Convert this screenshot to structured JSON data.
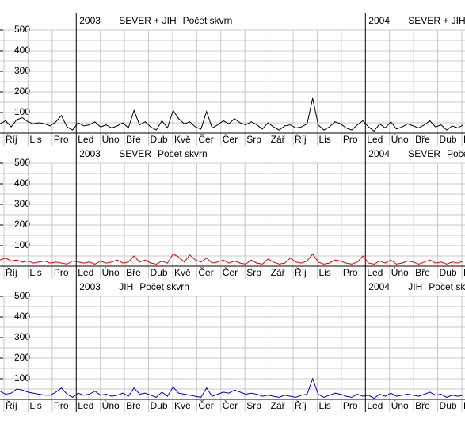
{
  "chart_data": [
    {
      "type": "line",
      "year_labels": [
        "2003",
        "2004"
      ],
      "subtitle": "SEVER + JIH",
      "title": "Počet skvrn",
      "months": [
        "Říj",
        "Lis",
        "Pro",
        "Led",
        "Úno",
        "Bře",
        "Dub",
        "Kvě",
        "Čer",
        "Čer",
        "Srp",
        "Zář",
        "Říj",
        "Lis",
        "Pro",
        "Led",
        "Úno",
        "Bře",
        "Dub",
        "Kvě"
      ],
      "ylim": [
        0,
        500
      ],
      "yticks": [
        100,
        200,
        300,
        400,
        500
      ],
      "minor_yticks": [
        50,
        150,
        250,
        350,
        450
      ],
      "grid": true,
      "series": [
        {
          "color": "#000000",
          "values": [
            45,
            60,
            30,
            65,
            75,
            55,
            45,
            50,
            45,
            35,
            55,
            85,
            30,
            15,
            50,
            35,
            40,
            55,
            30,
            40,
            25,
            35,
            50,
            25,
            110,
            40,
            55,
            30,
            15,
            60,
            25,
            110,
            70,
            45,
            55,
            30,
            20,
            105,
            25,
            40,
            60,
            45,
            70,
            50,
            40,
            55,
            40,
            20,
            50,
            30,
            15,
            35,
            40,
            25,
            30,
            45,
            170,
            40,
            15,
            30,
            55,
            45,
            25,
            15,
            40,
            60,
            30,
            10,
            45,
            25,
            55,
            20,
            30,
            45,
            35,
            25,
            40,
            60,
            30,
            40,
            15,
            35,
            25,
            40
          ]
        }
      ]
    },
    {
      "type": "line",
      "year_labels": [
        "2003",
        "2004"
      ],
      "subtitle": "SEVER",
      "title": "Počet skvrn",
      "months": [
        "Říj",
        "Lis",
        "Pro",
        "Led",
        "Úno",
        "Bře",
        "Dub",
        "Kvě",
        "Čer",
        "Čer",
        "Srp",
        "Zář",
        "Říj",
        "Lis",
        "Pro",
        "Led",
        "Úno",
        "Bře",
        "Dub",
        "Kvě"
      ],
      "ylim": [
        0,
        500
      ],
      "yticks": [
        100,
        200,
        300,
        400,
        500
      ],
      "minor_yticks": [
        50,
        150,
        250,
        350,
        450
      ],
      "grid": true,
      "series": [
        {
          "color": "#e00000",
          "values": [
            30,
            40,
            25,
            30,
            20,
            25,
            15,
            20,
            25,
            15,
            20,
            15,
            10,
            25,
            20,
            15,
            20,
            10,
            25,
            15,
            20,
            30,
            15,
            20,
            50,
            20,
            30,
            15,
            10,
            25,
            15,
            60,
            45,
            20,
            55,
            30,
            20,
            40,
            15,
            20,
            30,
            15,
            25,
            15,
            10,
            30,
            15,
            10,
            35,
            20,
            10,
            15,
            40,
            20,
            15,
            25,
            60,
            20,
            10,
            15,
            30,
            25,
            15,
            10,
            20,
            50,
            15,
            10,
            25,
            15,
            30,
            10,
            15,
            25,
            20,
            10,
            20,
            30,
            15,
            20,
            10,
            20,
            15,
            25
          ]
        }
      ]
    },
    {
      "type": "line",
      "year_labels": [
        "2003",
        "2004"
      ],
      "subtitle": "JIH",
      "title": "Počet skvrn",
      "months": [
        "Říj",
        "Lis",
        "Pro",
        "Led",
        "Úno",
        "Bře",
        "Dub",
        "Kvě",
        "Čer",
        "Čer",
        "Srp",
        "Zář",
        "Říj",
        "Lis",
        "Pro",
        "Led",
        "Úno",
        "Bře",
        "Dub",
        "Kvě"
      ],
      "ylim": [
        0,
        500
      ],
      "yticks": [
        100,
        200,
        300,
        400,
        500
      ],
      "minor_yticks": [
        50,
        150,
        250,
        350,
        450
      ],
      "grid": true,
      "series": [
        {
          "color": "#0000c0",
          "values": [
            40,
            25,
            30,
            50,
            45,
            35,
            30,
            25,
            20,
            20,
            35,
            55,
            25,
            10,
            30,
            20,
            25,
            40,
            20,
            25,
            15,
            20,
            30,
            15,
            55,
            25,
            30,
            20,
            10,
            35,
            15,
            60,
            30,
            25,
            20,
            15,
            10,
            55,
            15,
            25,
            35,
            30,
            45,
            35,
            25,
            30,
            25,
            15,
            20,
            15,
            10,
            20,
            15,
            10,
            20,
            25,
            100,
            25,
            10,
            20,
            30,
            25,
            15,
            10,
            25,
            15,
            20,
            5,
            25,
            15,
            30,
            15,
            20,
            25,
            20,
            15,
            25,
            35,
            20,
            25,
            10,
            20,
            15,
            20
          ]
        }
      ]
    }
  ]
}
